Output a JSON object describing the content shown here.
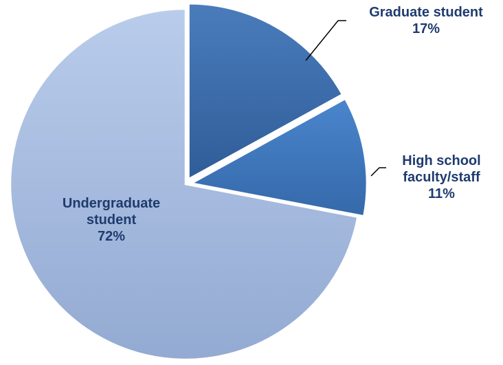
{
  "chart_data": {
    "type": "pie",
    "categories": [
      "Graduate student",
      "High school faculty/staff",
      "Undergraduate student"
    ],
    "values": [
      17,
      11,
      72
    ],
    "value_labels": [
      "17%",
      "11%",
      "72%"
    ],
    "colors": [
      "#3a6aa9",
      "#3e77bd",
      "#a8bde0"
    ]
  }
}
